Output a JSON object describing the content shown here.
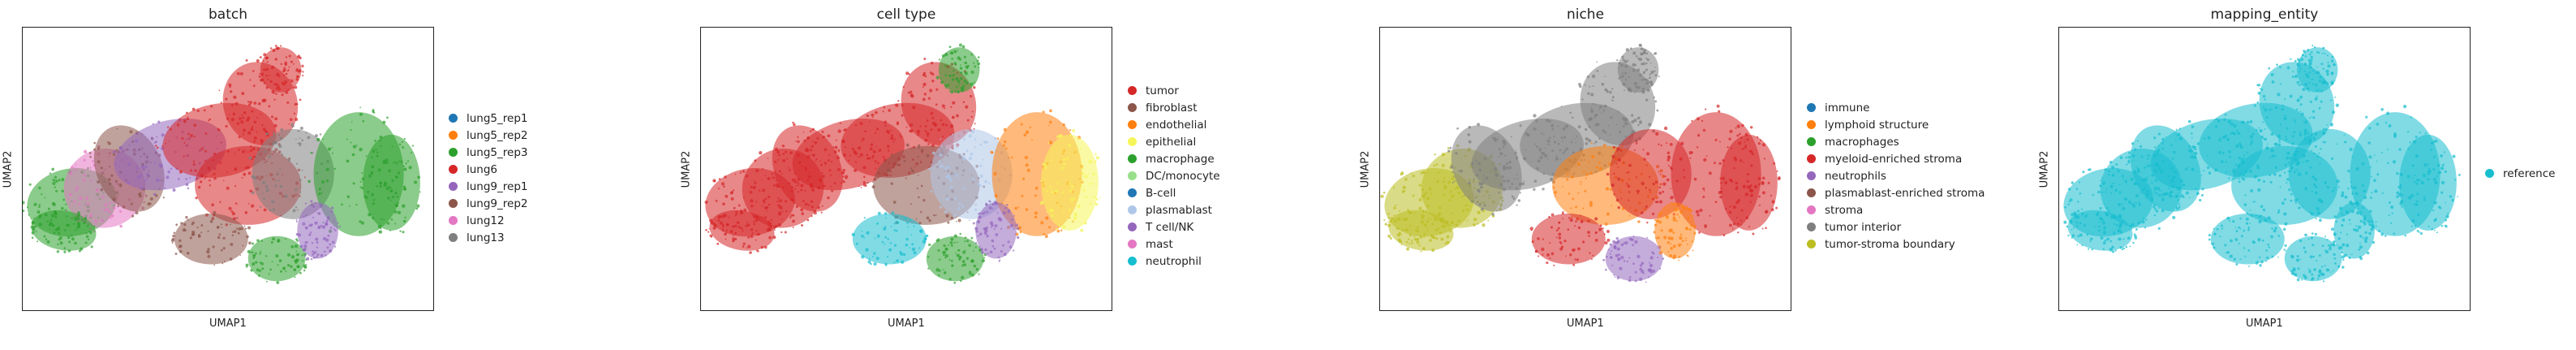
{
  "chart_data": [
    {
      "type": "scatter",
      "title": "batch",
      "xlabel": "UMAP1",
      "ylabel": "UMAP2",
      "grid": false,
      "legend_placement": "right",
      "legend": [
        {
          "label": "lung5_rep1",
          "color": "#1f77b4"
        },
        {
          "label": "lung5_rep2",
          "color": "#ff7f0e"
        },
        {
          "label": "lung5_rep3",
          "color": "#2ca02c"
        },
        {
          "label": "lung6",
          "color": "#d62728"
        },
        {
          "label": "lung9_rep1",
          "color": "#9467bd"
        },
        {
          "label": "lung9_rep2",
          "color": "#8c564b"
        },
        {
          "label": "lung12",
          "color": "#e377c2"
        },
        {
          "label": "lung13",
          "color": "#7f7f7f"
        }
      ]
    },
    {
      "type": "scatter",
      "title": "cell type",
      "xlabel": "UMAP1",
      "ylabel": "UMAP2",
      "grid": false,
      "legend_placement": "right",
      "legend": [
        {
          "label": "tumor",
          "color": "#d62728"
        },
        {
          "label": "fibroblast",
          "color": "#8c564b"
        },
        {
          "label": "endothelial",
          "color": "#ff7f0e"
        },
        {
          "label": "epithelial",
          "color": "#f5f55a"
        },
        {
          "label": "macrophage",
          "color": "#2ca02c"
        },
        {
          "label": "DC/monocyte",
          "color": "#98df8a"
        },
        {
          "label": "B-cell",
          "color": "#1f77b4"
        },
        {
          "label": "plasmablast",
          "color": "#aec7e8"
        },
        {
          "label": "T cell/NK",
          "color": "#9467bd"
        },
        {
          "label": "mast",
          "color": "#e377c2"
        },
        {
          "label": "neutrophil",
          "color": "#17becf"
        }
      ]
    },
    {
      "type": "scatter",
      "title": "niche",
      "xlabel": "UMAP1",
      "ylabel": "UMAP2",
      "grid": false,
      "legend_placement": "right",
      "legend": [
        {
          "label": "immune",
          "color": "#1f77b4"
        },
        {
          "label": "lymphoid structure",
          "color": "#ff7f0e"
        },
        {
          "label": "macrophages",
          "color": "#2ca02c"
        },
        {
          "label": "myeloid-enriched stroma",
          "color": "#d62728"
        },
        {
          "label": "neutrophils",
          "color": "#9467bd"
        },
        {
          "label": "plasmablast-enriched stroma",
          "color": "#8c564b"
        },
        {
          "label": "stroma",
          "color": "#e377c2"
        },
        {
          "label": "tumor interior",
          "color": "#7f7f7f"
        },
        {
          "label": "tumor-stroma boundary",
          "color": "#bcbd22"
        }
      ]
    },
    {
      "type": "scatter",
      "title": "mapping_entity",
      "xlabel": "UMAP1",
      "ylabel": "UMAP2",
      "grid": false,
      "legend_placement": "right",
      "legend": [
        {
          "label": "reference",
          "color": "#17becf"
        }
      ]
    }
  ]
}
